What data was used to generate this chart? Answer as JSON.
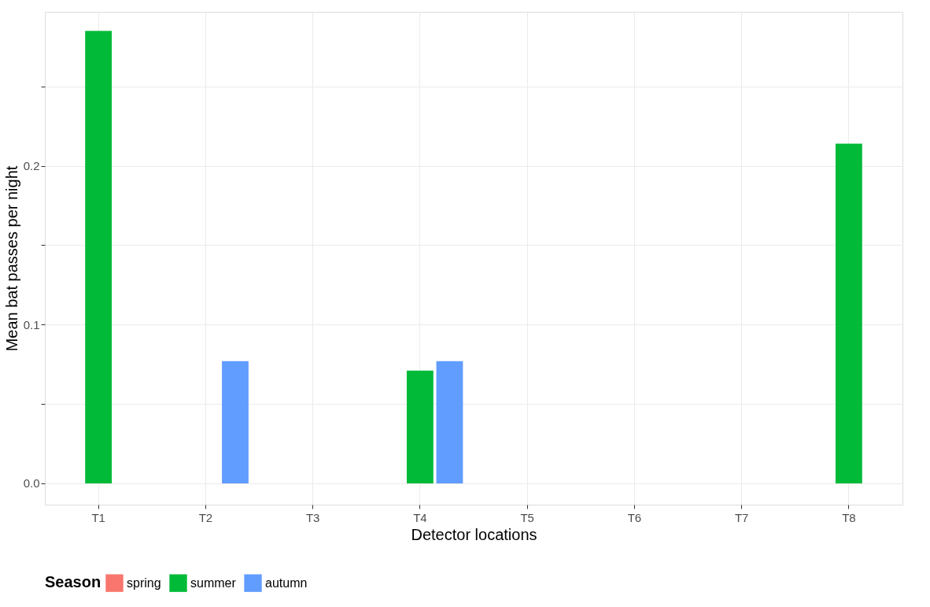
{
  "chart_data": {
    "type": "bar",
    "xlabel": "Detector locations",
    "ylabel": "Mean bat passes per night",
    "legend_title": "Season",
    "categories": [
      "T1",
      "T2",
      "T3",
      "T4",
      "T5",
      "T6",
      "T7",
      "T8"
    ],
    "series": [
      {
        "name": "spring",
        "color": "#f8766d",
        "values": [
          0,
          0,
          0,
          0,
          0,
          0,
          0,
          0
        ]
      },
      {
        "name": "summer",
        "color": "#00ba38",
        "values": [
          0.285,
          0,
          0,
          0.071,
          0,
          0,
          0,
          0.214
        ]
      },
      {
        "name": "autumn",
        "color": "#619cff",
        "values": [
          0,
          0.077,
          0,
          0.077,
          0,
          0,
          0,
          0
        ]
      }
    ],
    "ylim": [
      -0.0134,
      0.297
    ],
    "yticks": [
      {
        "value": 0,
        "label": "0.0"
      },
      {
        "value": 0.05,
        "label": null
      },
      {
        "value": 0.1,
        "label": "0.1"
      },
      {
        "value": 0.15,
        "label": null
      },
      {
        "value": 0.2,
        "label": "0.2"
      },
      {
        "value": 0.25,
        "label": null
      }
    ],
    "grid": true,
    "legend": "bottom"
  }
}
